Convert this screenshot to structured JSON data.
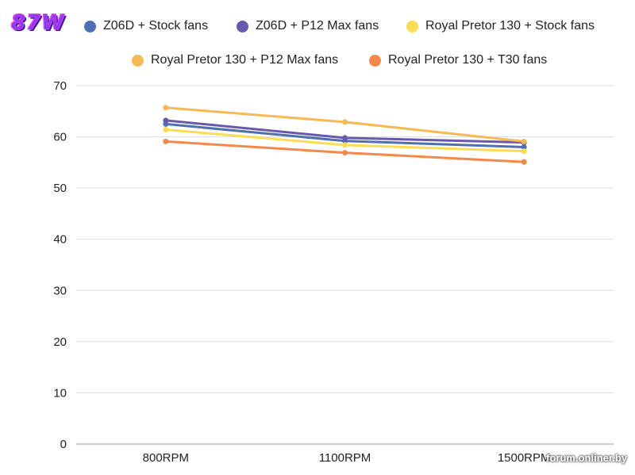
{
  "logo_text": "87W",
  "watermark": "forum.onliner.by",
  "chart_data": {
    "type": "line",
    "categories": [
      "800RPM",
      "1100RPM",
      "1500RPM"
    ],
    "ylim": [
      0,
      70
    ],
    "yticks": [
      0,
      10,
      20,
      30,
      40,
      50,
      60,
      70
    ],
    "grid": true,
    "legend_position": "top",
    "series": [
      {
        "name": "Z06D + Stock fans",
        "color": "#4f6fb0",
        "values": [
          62.5,
          59.2,
          58.0
        ]
      },
      {
        "name": "Z06D + P12 Max fans",
        "color": "#6a57b0",
        "values": [
          63.2,
          59.8,
          58.9
        ]
      },
      {
        "name": "Royal Pretor 130 + Stock fans",
        "color": "#fcdb55",
        "values": [
          61.4,
          58.4,
          57.2
        ]
      },
      {
        "name": "Royal Pretor 130 + P12 Max fans",
        "color": "#f7b955",
        "values": [
          65.7,
          62.9,
          59.1
        ]
      },
      {
        "name": "Royal Pretor 130 + T30 fans",
        "color": "#f4884a",
        "values": [
          59.1,
          56.9,
          55.1
        ]
      }
    ]
  }
}
